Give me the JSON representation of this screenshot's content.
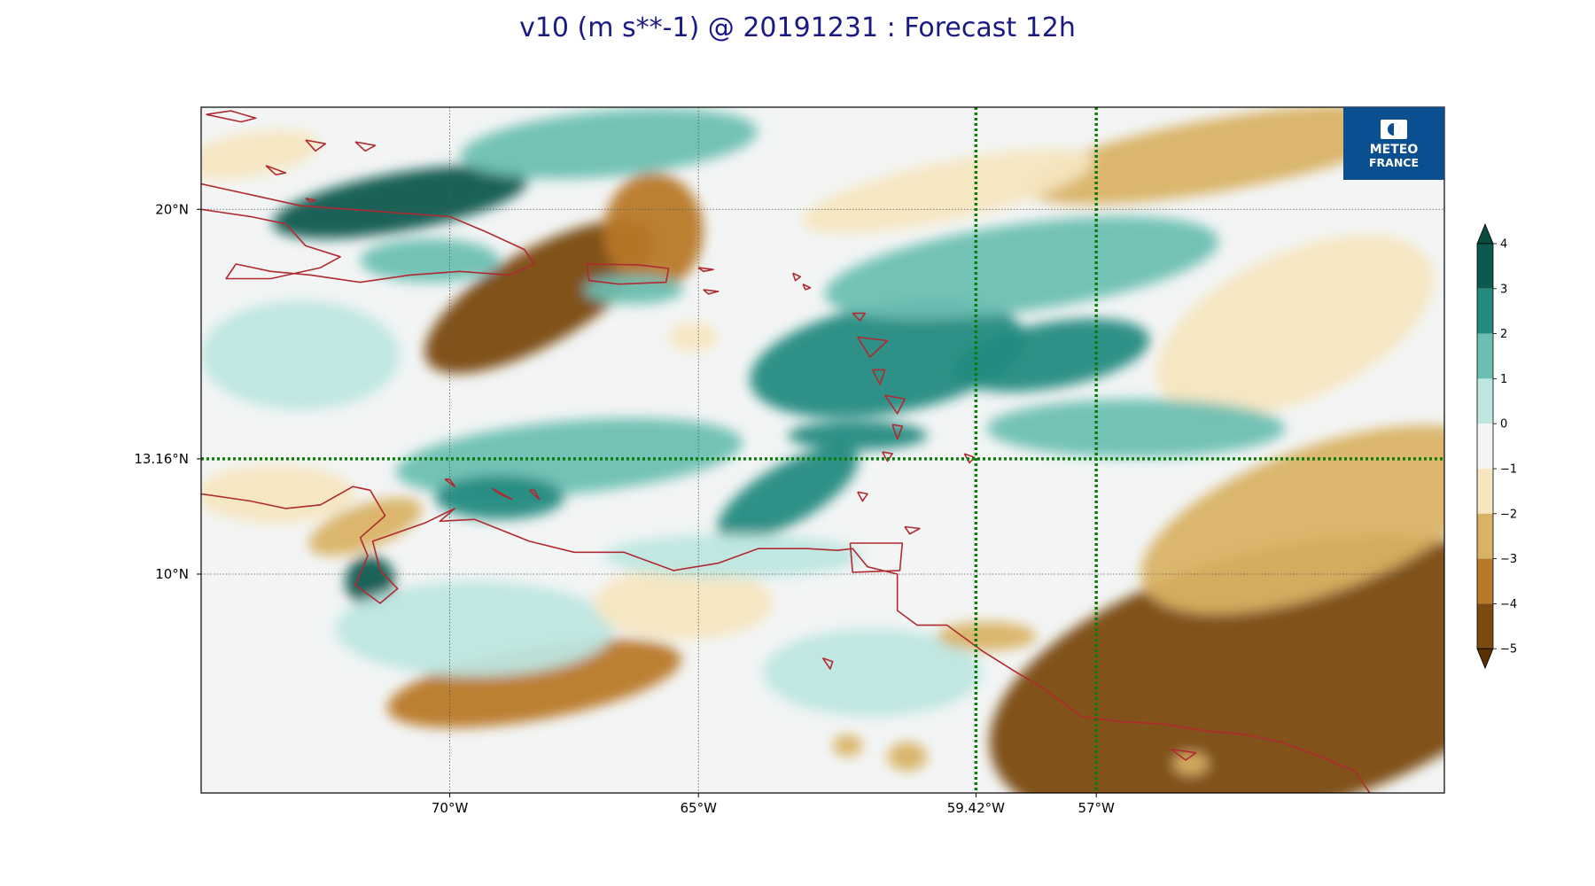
{
  "title": "v10 (m s**-1) @ 20191231 : Forecast 12h",
  "logo": {
    "line1": "METEO",
    "line2": "FRANCE",
    "bg": "#0a4f8f"
  },
  "map": {
    "lon_range": [
      -75,
      -50
    ],
    "lat_range": [
      4,
      22.8
    ],
    "coast_color": "#b02a30",
    "ocean_bg": "#f3f5f5"
  },
  "axes": {
    "x_ticks": [
      {
        "lon": -70,
        "label": "70°W"
      },
      {
        "lon": -65,
        "label": "65°W"
      },
      {
        "lon": -59.42,
        "label": "59.42°W"
      },
      {
        "lon": -57,
        "label": "57°W"
      }
    ],
    "y_ticks": [
      {
        "lat": 20,
        "label": "20°N"
      },
      {
        "lat": 13.16,
        "label": "13.16°N"
      },
      {
        "lat": 10,
        "label": "10°N"
      }
    ]
  },
  "highlight_lines": {
    "color": "#0a7d0a",
    "lons": [
      -59.42,
      -57
    ],
    "lats": [
      13.16
    ]
  },
  "colorbar": {
    "levels": [
      4,
      3,
      2,
      1,
      0,
      -1,
      -2,
      -3,
      -4,
      -5
    ],
    "labels": [
      "4",
      "3",
      "2",
      "1",
      "0",
      "−1",
      "−2",
      "−3",
      "−4",
      "−5"
    ],
    "colors": [
      "#0c5a4f",
      "#238a80",
      "#6bbfb2",
      "#bde6e0",
      "#f3f5f5",
      "#f5e6c0",
      "#d9b264",
      "#b87828",
      "#7a4a10"
    ],
    "top_color": "#0c4a40",
    "bottom_color": "#5a3000"
  },
  "field": {
    "blobs": [
      {
        "lon": -68.2,
        "lat": 17.6,
        "rx": 2.6,
        "ry": 1.3,
        "rot": -30,
        "v": -4.6
      },
      {
        "lon": -65.9,
        "lat": 19.4,
        "rx": 1.0,
        "ry": 1.6,
        "rot": 0,
        "v": -3.2
      },
      {
        "lon": -68.3,
        "lat": 7.0,
        "rx": 3.0,
        "ry": 1.0,
        "rot": -10,
        "v": -4.0
      },
      {
        "lon": -71.7,
        "lat": 11.3,
        "rx": 1.2,
        "ry": 0.6,
        "rot": -20,
        "v": -2.6
      },
      {
        "lon": -73.5,
        "lat": 12.2,
        "rx": 1.6,
        "ry": 0.8,
        "rot": 0,
        "v": -2.0
      },
      {
        "lon": -53.5,
        "lat": 7.0,
        "rx": 5.8,
        "ry": 3.6,
        "rot": -15,
        "v": -4.4
      },
      {
        "lon": -52.5,
        "lat": 11.5,
        "rx": 3.8,
        "ry": 2.0,
        "rot": -20,
        "v": -2.6
      },
      {
        "lon": -53.0,
        "lat": 16.8,
        "rx": 3.0,
        "ry": 2.0,
        "rot": -25,
        "v": -1.9
      },
      {
        "lon": -54.5,
        "lat": 21.5,
        "rx": 4.0,
        "ry": 1.0,
        "rot": -10,
        "v": -2.2
      },
      {
        "lon": -60.0,
        "lat": 20.5,
        "rx": 3.0,
        "ry": 0.8,
        "rot": -12,
        "v": -1.4
      },
      {
        "lon": -71.0,
        "lat": 20.2,
        "rx": 2.6,
        "ry": 0.8,
        "rot": -10,
        "v": 3.2
      },
      {
        "lon": -66.8,
        "lat": 21.8,
        "rx": 3.0,
        "ry": 0.9,
        "rot": -5,
        "v": 1.9
      },
      {
        "lon": -61.2,
        "lat": 15.9,
        "rx": 2.8,
        "ry": 1.5,
        "rot": -10,
        "v": 2.4
      },
      {
        "lon": -57.9,
        "lat": 16.0,
        "rx": 2.0,
        "ry": 0.9,
        "rot": -10,
        "v": 2.3
      },
      {
        "lon": -58.5,
        "lat": 18.4,
        "rx": 4.0,
        "ry": 1.2,
        "rot": -8,
        "v": 1.3
      },
      {
        "lon": -67.6,
        "lat": 13.2,
        "rx": 3.5,
        "ry": 1.0,
        "rot": -5,
        "v": 1.7
      },
      {
        "lon": -69.0,
        "lat": 12.1,
        "rx": 1.3,
        "ry": 0.6,
        "rot": 0,
        "v": 2.6
      },
      {
        "lon": -63.2,
        "lat": 12.2,
        "rx": 1.6,
        "ry": 0.8,
        "rot": -30,
        "v": 2.2
      },
      {
        "lon": -56.2,
        "lat": 14.0,
        "rx": 3.0,
        "ry": 0.8,
        "rot": 0,
        "v": 1.6
      },
      {
        "lon": -61.8,
        "lat": 13.8,
        "rx": 1.4,
        "ry": 0.4,
        "rot": 0,
        "v": 2.6
      },
      {
        "lon": -70.4,
        "lat": 18.6,
        "rx": 1.4,
        "ry": 0.6,
        "rot": 0,
        "v": 1.3
      },
      {
        "lon": -66.3,
        "lat": 17.8,
        "rx": 1.0,
        "ry": 0.4,
        "rot": 0,
        "v": 1.3
      },
      {
        "lon": -71.6,
        "lat": 9.8,
        "rx": 0.5,
        "ry": 0.7,
        "rot": 0,
        "v": 3.4
      },
      {
        "lon": -69.5,
        "lat": 8.5,
        "rx": 2.8,
        "ry": 1.3,
        "rot": 0,
        "v": 0.6
      },
      {
        "lon": -65.3,
        "lat": 9.2,
        "rx": 1.8,
        "ry": 1.0,
        "rot": 0,
        "v": -1.2
      },
      {
        "lon": -61.5,
        "lat": 7.3,
        "rx": 2.2,
        "ry": 1.2,
        "rot": 0,
        "v": 0.6
      },
      {
        "lon": -59.2,
        "lat": 8.3,
        "rx": 1.0,
        "ry": 0.4,
        "rot": 0,
        "v": -2.2
      },
      {
        "lon": -60.8,
        "lat": 5.0,
        "rx": 0.4,
        "ry": 0.4,
        "rot": 0,
        "v": -2.6
      },
      {
        "lon": -62.0,
        "lat": 5.3,
        "rx": 0.3,
        "ry": 0.3,
        "rot": 0,
        "v": -2.6
      },
      {
        "lon": -55.1,
        "lat": 4.8,
        "rx": 0.35,
        "ry": 0.3,
        "rot": 0,
        "v": -2.6
      },
      {
        "lon": -65.1,
        "lat": 16.5,
        "rx": 0.5,
        "ry": 0.4,
        "rot": 0,
        "v": -2.0
      },
      {
        "lon": -73.0,
        "lat": 16.0,
        "rx": 2.0,
        "ry": 1.5,
        "rot": 0,
        "v": 0.7
      },
      {
        "lon": -64.3,
        "lat": 10.5,
        "rx": 2.6,
        "ry": 0.6,
        "rot": 0,
        "v": 0.9
      },
      {
        "lon": -74.0,
        "lat": 21.5,
        "rx": 1.4,
        "ry": 0.6,
        "rot": -10,
        "v": -1.5
      }
    ]
  },
  "coastlines": [
    [
      [
        -75,
        20.7
      ],
      [
        -74.0,
        20.4
      ],
      [
        -73.0,
        20.1
      ],
      [
        -72.0,
        20.0
      ],
      [
        -71.0,
        19.9
      ],
      [
        -70.0,
        19.8
      ],
      [
        -69.3,
        19.4
      ],
      [
        -68.5,
        18.9
      ],
      [
        -68.3,
        18.5
      ],
      [
        -68.8,
        18.2
      ],
      [
        -69.8,
        18.3
      ],
      [
        -70.8,
        18.2
      ],
      [
        -71.8,
        18.0
      ],
      [
        -72.8,
        18.2
      ],
      [
        -73.6,
        18.3
      ],
      [
        -74.3,
        18.5
      ],
      [
        -74.5,
        18.1
      ],
      [
        -73.6,
        18.1
      ],
      [
        -72.6,
        18.4
      ],
      [
        -72.2,
        18.7
      ],
      [
        -72.9,
        19.0
      ],
      [
        -73.3,
        19.6
      ],
      [
        -74.0,
        19.8
      ],
      [
        -75,
        20.0
      ]
    ],
    [
      [
        -67.25,
        18.5
      ],
      [
        -66.2,
        18.48
      ],
      [
        -65.6,
        18.38
      ],
      [
        -65.65,
        18.0
      ],
      [
        -66.6,
        17.95
      ],
      [
        -67.2,
        18.05
      ],
      [
        -67.25,
        18.5
      ]
    ],
    [
      [
        -75,
        12.2
      ],
      [
        -74.0,
        12.0
      ],
      [
        -73.3,
        11.8
      ],
      [
        -72.6,
        11.9
      ],
      [
        -71.95,
        12.4
      ],
      [
        -71.6,
        12.3
      ],
      [
        -71.3,
        11.6
      ],
      [
        -71.8,
        11.0
      ],
      [
        -71.65,
        10.5
      ],
      [
        -71.9,
        9.7
      ],
      [
        -71.4,
        9.2
      ],
      [
        -71.05,
        9.6
      ],
      [
        -71.4,
        10.1
      ],
      [
        -71.55,
        10.9
      ],
      [
        -70.5,
        11.4
      ],
      [
        -69.9,
        11.8
      ],
      [
        -70.2,
        11.45
      ],
      [
        -69.5,
        11.5
      ],
      [
        -68.4,
        10.9
      ],
      [
        -67.5,
        10.6
      ],
      [
        -66.5,
        10.6
      ],
      [
        -65.5,
        10.1
      ],
      [
        -64.6,
        10.3
      ],
      [
        -63.8,
        10.7
      ],
      [
        -62.8,
        10.7
      ],
      [
        -62.2,
        10.65
      ],
      [
        -61.9,
        10.7
      ],
      [
        -61.6,
        10.2
      ],
      [
        -61.0,
        10.0
      ],
      [
        -61.0,
        9.0
      ],
      [
        -60.6,
        8.6
      ],
      [
        -60.0,
        8.6
      ],
      [
        -59.3,
        7.9
      ],
      [
        -58.6,
        7.3
      ],
      [
        -58.1,
        6.9
      ],
      [
        -57.3,
        6.1
      ],
      [
        -56.5,
        5.95
      ],
      [
        -55.7,
        5.9
      ],
      [
        -54.8,
        5.7
      ],
      [
        -54.0,
        5.6
      ],
      [
        -53.3,
        5.4
      ],
      [
        -52.5,
        5.0
      ],
      [
        -51.8,
        4.6
      ],
      [
        -51.5,
        4.0
      ]
    ],
    [
      [
        -61.95,
        10.85
      ],
      [
        -60.9,
        10.85
      ],
      [
        -60.95,
        10.1
      ],
      [
        -61.9,
        10.05
      ],
      [
        -61.95,
        10.85
      ]
    ],
    [
      [
        -70.1,
        12.6
      ],
      [
        -69.9,
        12.4
      ],
      [
        -70.0,
        12.6
      ],
      [
        -70.1,
        12.6
      ]
    ],
    [
      [
        -69.15,
        12.35
      ],
      [
        -68.75,
        12.05
      ],
      [
        -69.0,
        12.2
      ],
      [
        -69.15,
        12.35
      ]
    ],
    [
      [
        -68.4,
        12.3
      ],
      [
        -68.2,
        12.05
      ],
      [
        -68.3,
        12.3
      ],
      [
        -68.4,
        12.3
      ]
    ],
    [
      [
        -60.85,
        11.3
      ],
      [
        -60.55,
        11.25
      ],
      [
        -60.75,
        11.1
      ],
      [
        -60.85,
        11.3
      ]
    ],
    [
      [
        -61.8,
        12.25
      ],
      [
        -61.6,
        12.2
      ],
      [
        -61.7,
        12.0
      ],
      [
        -61.8,
        12.25
      ]
    ],
    [
      [
        -61.3,
        13.35
      ],
      [
        -61.1,
        13.3
      ],
      [
        -61.2,
        13.1
      ],
      [
        -61.3,
        13.35
      ]
    ],
    [
      [
        -59.65,
        13.3
      ],
      [
        -59.45,
        13.2
      ],
      [
        -59.55,
        13.05
      ],
      [
        -59.65,
        13.3
      ]
    ],
    [
      [
        -61.1,
        14.1
      ],
      [
        -60.9,
        14.05
      ],
      [
        -61.0,
        13.7
      ],
      [
        -61.1,
        14.1
      ]
    ],
    [
      [
        -61.25,
        14.9
      ],
      [
        -60.85,
        14.8
      ],
      [
        -61.0,
        14.4
      ],
      [
        -61.25,
        14.9
      ]
    ],
    [
      [
        -61.5,
        15.6
      ],
      [
        -61.25,
        15.6
      ],
      [
        -61.35,
        15.2
      ],
      [
        -61.5,
        15.6
      ]
    ],
    [
      [
        -61.8,
        16.5
      ],
      [
        -61.2,
        16.4
      ],
      [
        -61.55,
        15.95
      ],
      [
        -61.8,
        16.5
      ]
    ],
    [
      [
        -61.9,
        17.15
      ],
      [
        -61.65,
        17.15
      ],
      [
        -61.75,
        16.95
      ],
      [
        -61.9,
        17.15
      ]
    ],
    [
      [
        -62.9,
        17.95
      ],
      [
        -62.75,
        17.85
      ],
      [
        -62.85,
        17.8
      ],
      [
        -62.9,
        17.95
      ]
    ],
    [
      [
        -63.1,
        18.25
      ],
      [
        -62.95,
        18.15
      ],
      [
        -63.05,
        18.05
      ],
      [
        -63.1,
        18.25
      ]
    ],
    [
      [
        -65.0,
        18.4
      ],
      [
        -64.7,
        18.35
      ],
      [
        -64.9,
        18.3
      ],
      [
        -65.0,
        18.4
      ]
    ],
    [
      [
        -64.9,
        17.8
      ],
      [
        -64.6,
        17.75
      ],
      [
        -64.8,
        17.68
      ],
      [
        -64.9,
        17.8
      ]
    ],
    [
      [
        -72.9,
        20.3
      ],
      [
        -72.7,
        20.25
      ],
      [
        -72.8,
        20.2
      ],
      [
        -72.9,
        20.3
      ]
    ],
    [
      [
        -74.9,
        22.6
      ],
      [
        -74.4,
        22.7
      ],
      [
        -73.9,
        22.5
      ],
      [
        -74.2,
        22.4
      ],
      [
        -74.9,
        22.6
      ]
    ],
    [
      [
        -72.9,
        21.9
      ],
      [
        -72.5,
        21.8
      ],
      [
        -72.7,
        21.6
      ],
      [
        -72.9,
        21.9
      ]
    ],
    [
      [
        -71.9,
        21.85
      ],
      [
        -71.5,
        21.75
      ],
      [
        -71.7,
        21.6
      ],
      [
        -71.9,
        21.85
      ]
    ],
    [
      [
        -73.7,
        21.2
      ],
      [
        -73.3,
        21.0
      ],
      [
        -73.5,
        20.95
      ],
      [
        -73.7,
        21.2
      ]
    ],
    [
      [
        -62.5,
        7.7
      ],
      [
        -62.3,
        7.6
      ],
      [
        -62.35,
        7.4
      ],
      [
        -62.5,
        7.7
      ]
    ],
    [
      [
        -55.5,
        5.2
      ],
      [
        -55.0,
        5.1
      ],
      [
        -55.2,
        4.9
      ],
      [
        -55.5,
        5.2
      ]
    ]
  ]
}
